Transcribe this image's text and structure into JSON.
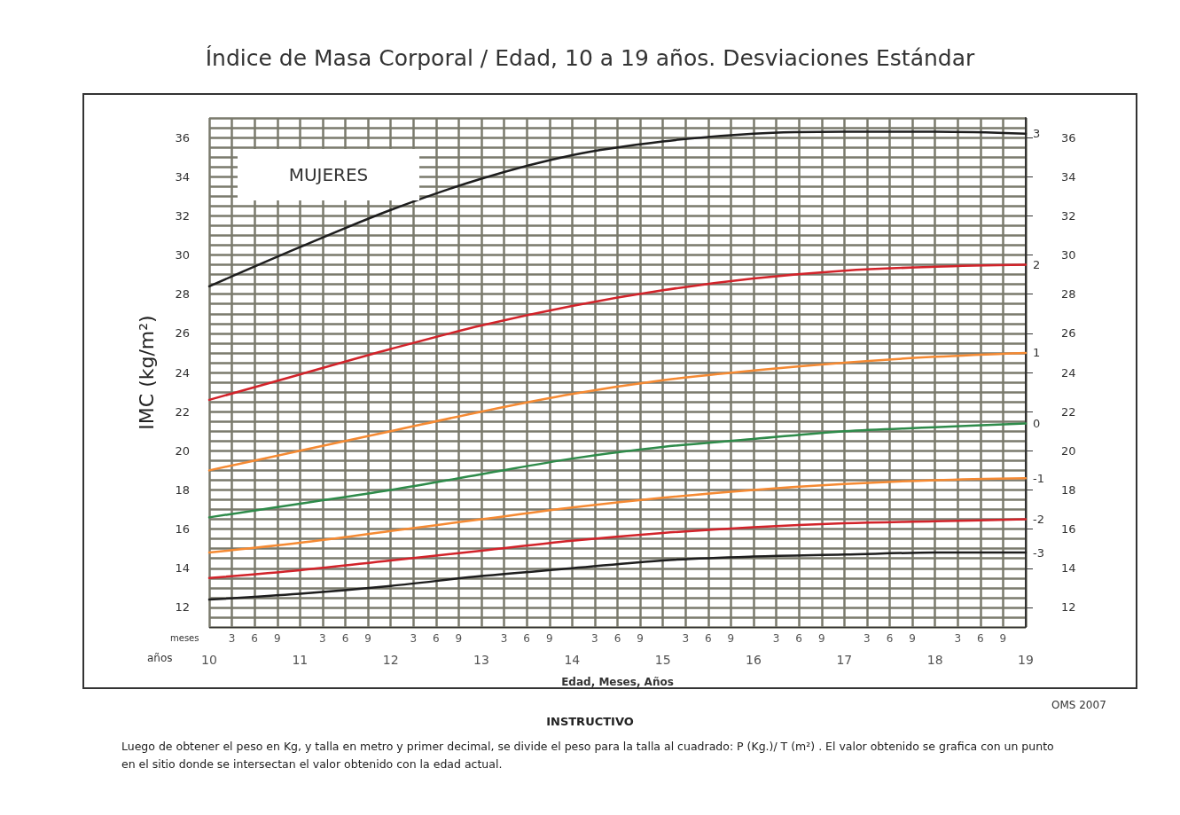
{
  "chart_data": {
    "type": "line",
    "title": "Índice de Masa Corporal / Edad, 10 a 19 años. Desviaciones Estándar",
    "xlabel": "Edad, Meses, Años",
    "ylabel": "IMC (kg/m²)",
    "x": [
      10,
      11,
      12,
      13,
      14,
      15,
      16,
      17,
      18,
      19
    ],
    "series": [
      {
        "name": "3",
        "color": "#1e1e1e",
        "values": [
          28.4,
          30.4,
          32.3,
          33.9,
          35.1,
          35.8,
          36.2,
          36.3,
          36.3,
          36.2
        ]
      },
      {
        "name": "2",
        "color": "#d2232a",
        "values": [
          22.6,
          23.9,
          25.2,
          26.4,
          27.4,
          28.2,
          28.8,
          29.2,
          29.4,
          29.5
        ]
      },
      {
        "name": "1",
        "color": "#f58a33",
        "values": [
          19.0,
          20.0,
          21.0,
          22.0,
          22.9,
          23.6,
          24.1,
          24.5,
          24.8,
          25.0
        ]
      },
      {
        "name": "0",
        "color": "#2e8b4a",
        "values": [
          16.6,
          17.3,
          18.0,
          18.8,
          19.6,
          20.2,
          20.6,
          21.0,
          21.2,
          21.4
        ]
      },
      {
        "name": "-1",
        "color": "#f58a33",
        "values": [
          14.8,
          15.3,
          15.9,
          16.5,
          17.1,
          17.6,
          18.0,
          18.3,
          18.5,
          18.6
        ]
      },
      {
        "name": "-2",
        "color": "#d2232a",
        "values": [
          13.5,
          13.9,
          14.4,
          14.9,
          15.4,
          15.8,
          16.1,
          16.3,
          16.4,
          16.5
        ]
      },
      {
        "name": "-3",
        "color": "#1e1e1e",
        "values": [
          12.4,
          12.7,
          13.1,
          13.6,
          14.0,
          14.4,
          14.6,
          14.7,
          14.8,
          14.8
        ]
      }
    ],
    "xlim": [
      10,
      19
    ],
    "xticks": [
      10,
      {
        "value": 10.25,
        "label": null
      },
      {
        "value": 10.5,
        "label": null
      },
      {
        "value": 10.75,
        "label": null
      },
      11,
      {
        "value": 11.25,
        "label": null
      },
      {
        "value": 11.5,
        "label": null
      },
      {
        "value": 11.75,
        "label": null
      },
      12,
      {
        "value": 12.25,
        "label": null
      },
      {
        "value": 12.5,
        "label": null
      },
      {
        "value": 12.75,
        "label": null
      },
      13,
      {
        "value": 13.25,
        "label": null
      },
      {
        "value": 13.5,
        "label": null
      },
      {
        "value": 13.75,
        "label": null
      },
      14,
      {
        "value": 14.25,
        "label": null
      },
      {
        "value": 14.5,
        "label": null
      },
      {
        "value": 14.75,
        "label": null
      },
      15,
      {
        "value": 15.25,
        "label": null
      },
      {
        "value": 15.5,
        "label": null
      },
      {
        "value": 15.75,
        "label": null
      },
      16,
      {
        "value": 16.25,
        "label": null
      },
      {
        "value": 16.5,
        "label": null
      },
      {
        "value": 16.75,
        "label": null
      },
      17,
      {
        "value": 17.25,
        "label": null
      },
      {
        "value": 17.5,
        "label": null
      },
      {
        "value": 17.75,
        "label": null
      },
      18,
      {
        "value": 18.25,
        "label": null
      },
      {
        "value": 18.5,
        "label": null
      },
      {
        "value": 18.75,
        "label": null
      },
      19
    ],
    "ylim": [
      11,
      37
    ],
    "yticks": [
      12,
      14,
      16,
      18,
      20,
      22,
      24,
      26,
      28,
      30,
      32,
      34,
      36
    ],
    "y2lim": [
      11,
      37
    ],
    "y2ticks": [
      12,
      14,
      16,
      18,
      20,
      22,
      24,
      26,
      28,
      30,
      32,
      34,
      36
    ],
    "grid": true,
    "legend": false,
    "marker": "none",
    "line_style": "solid",
    "annotations": [
      "MUJERES",
      "meses",
      "años",
      "OMS 2007",
      "INSTRUCTIVO",
      "Luego de obtener el peso en Kg, y talla en metro y primer decimal, se divide el peso para la talla al cuadrado: P (Kg.)/ T (m²) . El valor obtenido se grafica con un punto en el sitio donde se intersectan el valor obtenido con la edad actual.",
      "3",
      "6",
      "9",
      "3",
      "6",
      "9",
      "3",
      "6",
      "9",
      "3",
      "6",
      "9",
      "3",
      "6",
      "9",
      "3",
      "6",
      "9",
      "3",
      "6",
      "9",
      "3",
      "6",
      "9",
      "3",
      "6",
      "9"
    ]
  }
}
